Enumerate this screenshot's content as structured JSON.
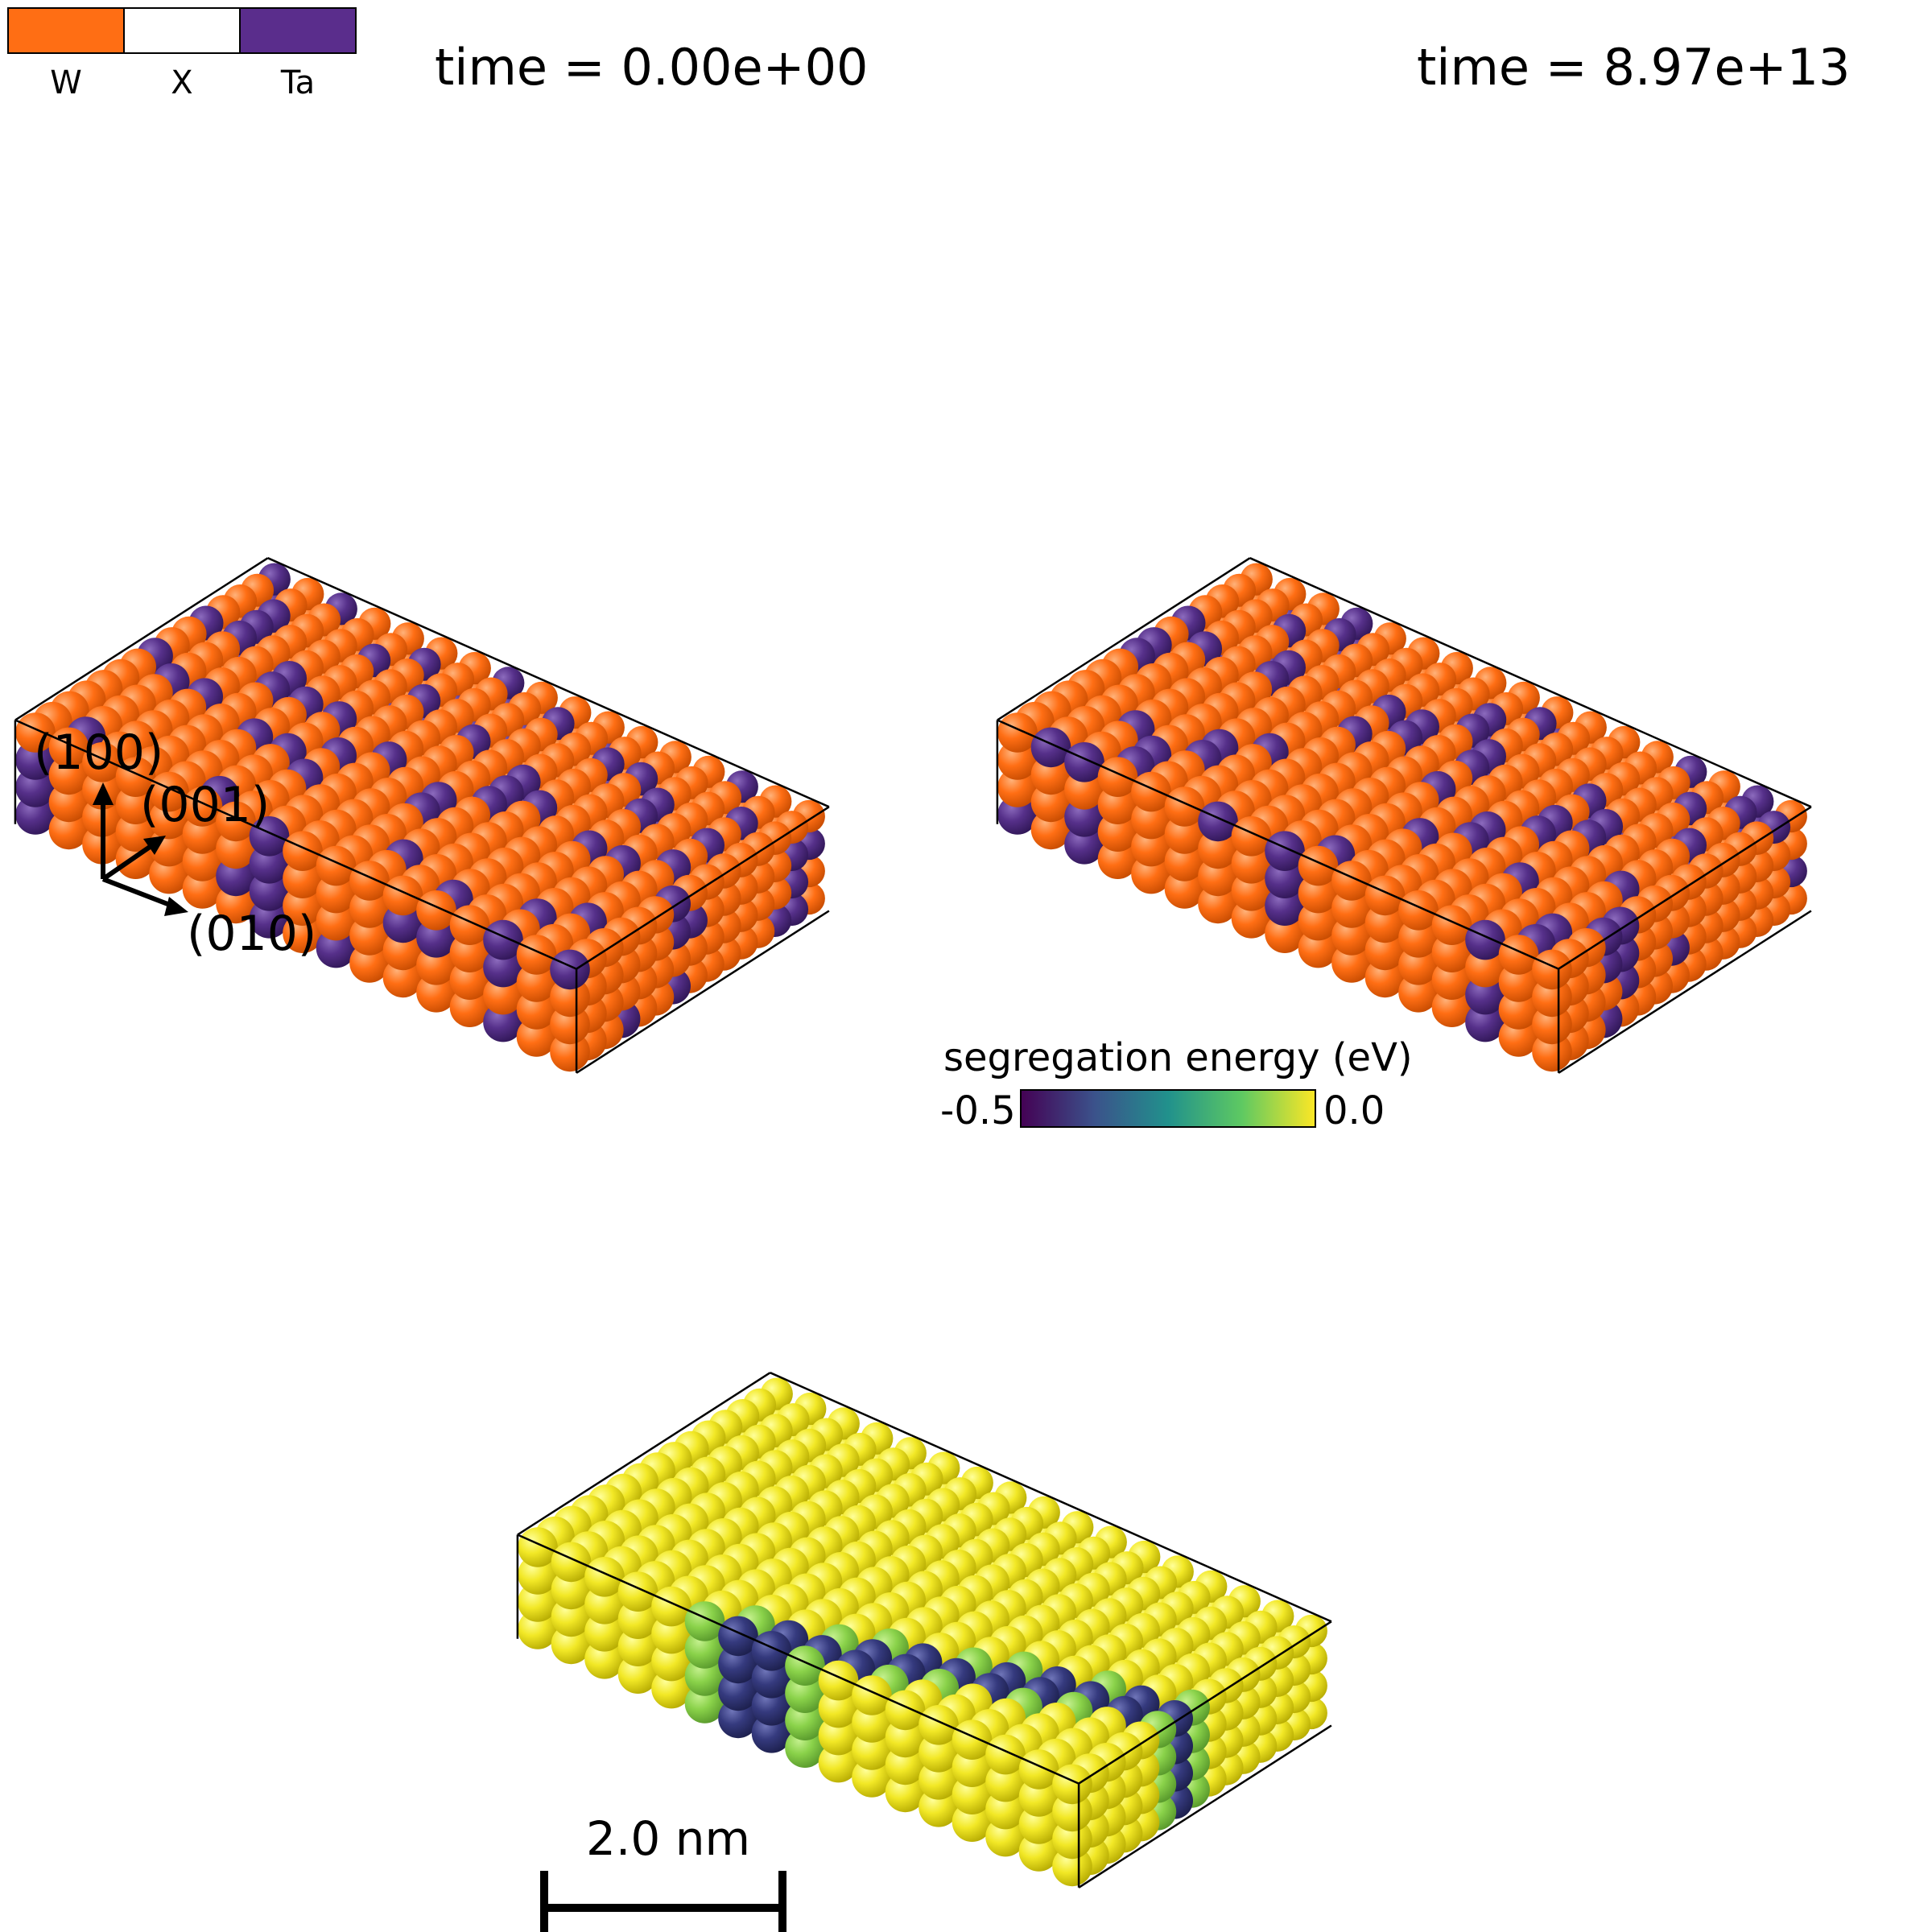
{
  "legend": {
    "entries": [
      {
        "label": "W",
        "color": "#ff6e14"
      },
      {
        "label": "X",
        "color": "#ffffff"
      },
      {
        "label": "Ta",
        "color": "#5a2d8c"
      }
    ]
  },
  "panels": {
    "left_time": "time = 0.00e+00",
    "right_time": "time = 8.97e+13"
  },
  "axes_triad": {
    "up": "(100)",
    "diag": "(001)",
    "right": "(010)"
  },
  "colorbar": {
    "title": "segregation energy (eV)",
    "min_label": "-0.5",
    "max_label": "0.0",
    "min": -0.5,
    "max": 0.0
  },
  "scale_bar": {
    "label": "2.0 nm"
  },
  "colors": {
    "w": "#ff6e14",
    "ta": "#56308a",
    "yellow": "#f2e826",
    "green": "#8ad24a",
    "navy": "#353a7e"
  }
}
